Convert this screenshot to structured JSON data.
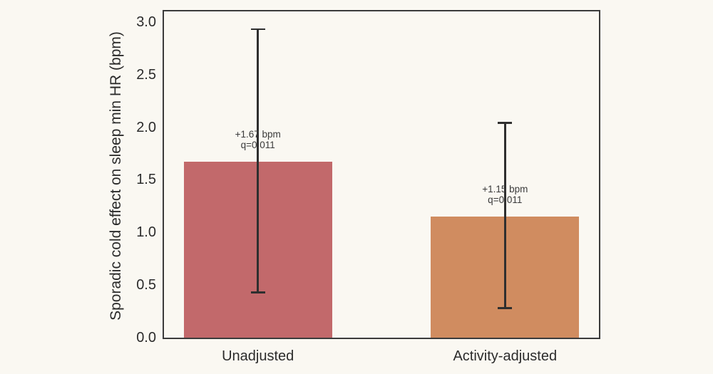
{
  "chart_data": {
    "type": "bar",
    "title": "",
    "xlabel": "",
    "ylabel": "Sporadic cold effect on sleep min HR (bpm)",
    "categories": [
      "Unadjusted",
      "Activity-adjusted"
    ],
    "values": [
      1.67,
      1.15
    ],
    "error_bars": [
      {
        "low": 0.43,
        "high": 2.93
      },
      {
        "low": 0.28,
        "high": 2.04
      }
    ],
    "annotations": [
      [
        "+1.67 bpm",
        "q=0.011"
      ],
      [
        "+1.15 bpm",
        "q=0.011"
      ]
    ],
    "bar_colors": [
      "#c2696b",
      "#d08c60"
    ],
    "ytick_labels": [
      "0.0",
      "0.5",
      "1.0",
      "1.5",
      "2.0",
      "2.5",
      "3.0"
    ],
    "ylim": [
      0,
      3.1
    ],
    "grid": false,
    "legend_position": "none",
    "background_color": "#faf8f2",
    "axis_color": "#3b3b3b",
    "errorbar_color": "#2f2f2f"
  }
}
